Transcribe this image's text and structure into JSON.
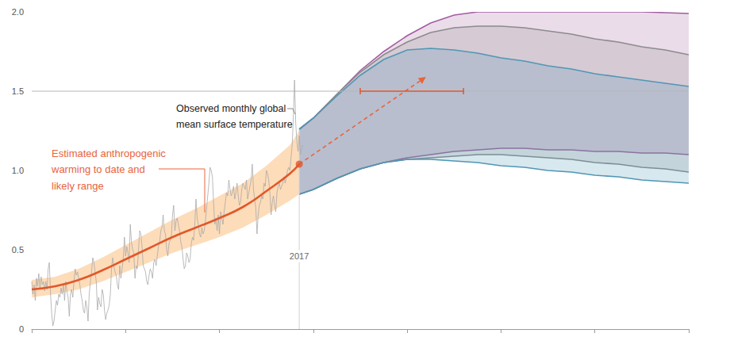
{
  "chart_data": {
    "type": "line",
    "xlim": [
      1960,
      2100
    ],
    "xticks": [
      1960,
      1980,
      2000,
      2020,
      2040,
      2060,
      2080,
      2100
    ],
    "ylim": [
      0,
      2
    ],
    "yticks": [
      0,
      0.5,
      {
        "value": 1,
        "label": "1.0"
      },
      1.5,
      {
        "value": 2,
        "label": "2.0"
      }
    ],
    "tick_labels": "y",
    "grid": false,
    "hline": {
      "y": 1.5,
      "color": "#b5b5b5"
    },
    "vline": 2017,
    "annotations": [
      {
        "text": "Observed monthly global\nmean surface temperature",
        "color": "#222222"
      },
      {
        "text": "Estimated anthropogenic\nwarming to date and\nlikely range",
        "color": "#e8643c"
      }
    ],
    "series": [
      {
        "type": "band",
        "color": "#fbc48a",
        "line_style": "none",
        "x": [
          1960,
          1965,
          1970,
          1975,
          1980,
          1985,
          1990,
          1995,
          2000,
          2005,
          2010,
          2015,
          2017
        ],
        "lower": [
          0.2,
          0.22,
          0.25,
          0.3,
          0.36,
          0.42,
          0.48,
          0.53,
          0.58,
          0.64,
          0.72,
          0.81,
          0.85
        ],
        "upper": [
          0.31,
          0.33,
          0.38,
          0.45,
          0.53,
          0.61,
          0.69,
          0.76,
          0.84,
          0.92,
          1.03,
          1.16,
          1.25
        ]
      },
      {
        "type": "line",
        "color": "#a9a9a9",
        "line_style": "thin",
        "x": [
          1960,
          1960.25,
          1960.5,
          1960.75,
          1961,
          1961.25,
          1961.5,
          1961.75,
          1962,
          1962.25,
          1962.5,
          1962.75,
          1963,
          1963.25,
          1963.5,
          1963.75,
          1964,
          1964.25,
          1964.5,
          1964.75,
          1965,
          1965.25,
          1965.5,
          1965.75,
          1966,
          1966.25,
          1966.5,
          1966.75,
          1967,
          1967.25,
          1967.5,
          1967.75,
          1968,
          1968.25,
          1968.5,
          1968.75,
          1969,
          1969.25,
          1969.5,
          1969.75,
          1970,
          1970.25,
          1970.5,
          1970.75,
          1971,
          1971.25,
          1971.5,
          1971.75,
          1972,
          1972.25,
          1972.5,
          1972.75,
          1973,
          1973.25,
          1973.5,
          1973.75,
          1974,
          1974.25,
          1974.5,
          1974.75,
          1975,
          1975.25,
          1975.5,
          1975.75,
          1976,
          1976.25,
          1976.5,
          1976.75,
          1977,
          1977.25,
          1977.5,
          1977.75,
          1978,
          1978.25,
          1978.5,
          1978.75,
          1979,
          1979.25,
          1979.5,
          1979.75,
          1980,
          1980.25,
          1980.5,
          1980.75,
          1981,
          1981.25,
          1981.5,
          1981.75,
          1982,
          1982.25,
          1982.5,
          1982.75,
          1983,
          1983.25,
          1983.5,
          1983.75,
          1984,
          1984.25,
          1984.5,
          1984.75,
          1985,
          1985.25,
          1985.5,
          1985.75,
          1986,
          1986.25,
          1986.5,
          1986.75,
          1987,
          1987.25,
          1987.5,
          1987.75,
          1988,
          1988.25,
          1988.5,
          1988.75,
          1989,
          1989.25,
          1989.5,
          1989.75,
          1990,
          1990.25,
          1990.5,
          1990.75,
          1991,
          1991.25,
          1991.5,
          1991.75,
          1992,
          1992.25,
          1992.5,
          1992.75,
          1993,
          1993.25,
          1993.5,
          1993.75,
          1994,
          1994.25,
          1994.5,
          1994.75,
          1995,
          1995.25,
          1995.5,
          1995.75,
          1996,
          1996.25,
          1996.5,
          1996.75,
          1997,
          1997.25,
          1997.5,
          1997.75,
          1998,
          1998.25,
          1998.5,
          1998.75,
          1999,
          1999.25,
          1999.5,
          1999.75,
          2000,
          2000.25,
          2000.5,
          2000.75,
          2001,
          2001.25,
          2001.5,
          2001.75,
          2002,
          2002.25,
          2002.5,
          2002.75,
          2003,
          2003.25,
          2003.5,
          2003.75,
          2004,
          2004.25,
          2004.5,
          2004.75,
          2005,
          2005.25,
          2005.5,
          2005.75,
          2006,
          2006.25,
          2006.5,
          2006.75,
          2007,
          2007.25,
          2007.5,
          2007.75,
          2008,
          2008.25,
          2008.5,
          2008.75,
          2009,
          2009.25,
          2009.5,
          2009.75,
          2010,
          2010.25,
          2010.5,
          2010.75,
          2011,
          2011.25,
          2011.5,
          2011.75,
          2012,
          2012.25,
          2012.5,
          2012.75,
          2013,
          2013.25,
          2013.5,
          2013.75,
          2014,
          2014.25,
          2014.5,
          2014.75,
          2015,
          2015.25,
          2015.5,
          2015.75,
          2016,
          2016.25,
          2016.5,
          2016.75,
          2017,
          2017.25,
          2017.5,
          2017.75
        ],
        "values": [
          0.3,
          0.22,
          0.28,
          0.18,
          0.32,
          0.27,
          0.35,
          0.26,
          0.33,
          0.28,
          0.3,
          0.24,
          0.3,
          0.25,
          0.38,
          0.42,
          0.22,
          0.1,
          0.02,
          0.05,
          0.12,
          0.18,
          0.15,
          0.22,
          0.2,
          0.26,
          0.22,
          0.28,
          0.18,
          0.3,
          0.24,
          0.2,
          0.08,
          0.22,
          0.25,
          0.2,
          0.3,
          0.38,
          0.34,
          0.36,
          0.32,
          0.28,
          0.22,
          0.18,
          0.12,
          0.1,
          0.18,
          0.14,
          0.05,
          0.22,
          0.3,
          0.36,
          0.45,
          0.42,
          0.36,
          0.3,
          0.12,
          0.2,
          0.16,
          0.14,
          0.25,
          0.22,
          0.12,
          0.06,
          0.1,
          0.12,
          0.15,
          0.22,
          0.38,
          0.45,
          0.4,
          0.36,
          0.34,
          0.28,
          0.25,
          0.4,
          0.32,
          0.38,
          0.44,
          0.58,
          0.46,
          0.52,
          0.48,
          0.42,
          0.66,
          0.55,
          0.5,
          0.48,
          0.32,
          0.4,
          0.38,
          0.5,
          0.62,
          0.6,
          0.52,
          0.4,
          0.38,
          0.36,
          0.3,
          0.28,
          0.34,
          0.38,
          0.36,
          0.32,
          0.42,
          0.44,
          0.4,
          0.46,
          0.52,
          0.55,
          0.62,
          0.64,
          0.72,
          0.62,
          0.6,
          0.5,
          0.46,
          0.54,
          0.56,
          0.58,
          0.72,
          0.78,
          0.62,
          0.68,
          0.7,
          0.66,
          0.62,
          0.55,
          0.52,
          0.44,
          0.38,
          0.4,
          0.48,
          0.46,
          0.42,
          0.44,
          0.54,
          0.58,
          0.56,
          0.66,
          0.82,
          0.7,
          0.66,
          0.6,
          0.58,
          0.64,
          0.6,
          0.62,
          0.68,
          0.76,
          0.84,
          0.92,
          1.02,
          1.0,
          0.96,
          0.8,
          0.66,
          0.7,
          0.62,
          0.72,
          0.6,
          0.74,
          0.7,
          0.66,
          0.74,
          0.8,
          0.86,
          0.84,
          0.94,
          0.88,
          0.84,
          0.86,
          0.9,
          0.82,
          0.86,
          0.92,
          0.84,
          0.78,
          0.8,
          0.88,
          0.92,
          0.9,
          0.88,
          0.94,
          0.82,
          0.86,
          0.9,
          0.94,
          1.04,
          0.88,
          0.82,
          0.76,
          0.6,
          0.72,
          0.78,
          0.8,
          0.84,
          0.82,
          0.92,
          0.9,
          1.0,
          0.98,
          0.94,
          0.86,
          0.72,
          0.8,
          0.84,
          0.78,
          0.74,
          0.86,
          0.9,
          0.92,
          0.88,
          0.9,
          0.92,
          0.96,
          0.92,
          0.96,
          1.0,
          1.02,
          1.0,
          1.08,
          1.16,
          1.34,
          1.57,
          1.3,
          1.18,
          1.12,
          1.22,
          1.1,
          1.14,
          1.16
        ]
      },
      {
        "type": "line",
        "color": "#e1582a",
        "line_style": "thick",
        "x": [
          1960,
          1965,
          1970,
          1975,
          1980,
          1985,
          1990,
          1995,
          2000,
          2005,
          2010,
          2015,
          2017
        ],
        "values": [
          0.25,
          0.27,
          0.31,
          0.37,
          0.44,
          0.51,
          0.58,
          0.64,
          0.7,
          0.77,
          0.87,
          0.98,
          1.04
        ]
      },
      {
        "type": "arrow",
        "color": "#e8643c",
        "line_style": "dashed",
        "x": [
          2017,
          2044
        ],
        "values": [
          1.04,
          1.59
        ]
      },
      {
        "type": "scatter",
        "color": "#e1582a",
        "marker": "circle",
        "x": [
          2017
        ],
        "values": [
          1.04
        ]
      },
      {
        "type": "range",
        "color": "#e1582a",
        "x": [
          2030,
          2052
        ],
        "values": [
          1.5,
          1.5
        ]
      },
      {
        "type": "band",
        "color": "#a25ea0",
        "line_style": "solid",
        "x": [
          2017,
          2020,
          2025,
          2030,
          2035,
          2040,
          2045,
          2050,
          2055,
          2060,
          2065,
          2070,
          2075,
          2080,
          2085,
          2090,
          2095,
          2100
        ],
        "lower": [
          0.85,
          0.88,
          0.95,
          1.01,
          1.05,
          1.08,
          1.1,
          1.12,
          1.13,
          1.14,
          1.14,
          1.13,
          1.13,
          1.12,
          1.12,
          1.11,
          1.11,
          1.1
        ],
        "upper": [
          1.26,
          1.33,
          1.48,
          1.63,
          1.75,
          1.85,
          1.93,
          1.98,
          2.0,
          2.0,
          2.0,
          2.0,
          2.0,
          2.0,
          2.0,
          2.0,
          1.995,
          1.99
        ]
      },
      {
        "type": "band",
        "color": "#8c8c8c",
        "line_style": "solid",
        "x": [
          2017,
          2020,
          2025,
          2030,
          2035,
          2040,
          2045,
          2050,
          2055,
          2060,
          2065,
          2070,
          2075,
          2080,
          2085,
          2090,
          2095,
          2100
        ],
        "lower": [
          0.85,
          0.88,
          0.95,
          1.01,
          1.05,
          1.07,
          1.08,
          1.09,
          1.1,
          1.1,
          1.09,
          1.08,
          1.07,
          1.05,
          1.04,
          1.02,
          1.01,
          0.99
        ],
        "upper": [
          1.26,
          1.33,
          1.48,
          1.62,
          1.73,
          1.81,
          1.87,
          1.9,
          1.91,
          1.91,
          1.9,
          1.88,
          1.86,
          1.83,
          1.81,
          1.78,
          1.76,
          1.73
        ]
      },
      {
        "type": "band",
        "color": "#4f97b4",
        "line_style": "solid",
        "x": [
          2017,
          2020,
          2025,
          2030,
          2035,
          2040,
          2045,
          2050,
          2055,
          2060,
          2065,
          2070,
          2075,
          2080,
          2085,
          2090,
          2095,
          2100
        ],
        "lower": [
          0.85,
          0.88,
          0.95,
          1.01,
          1.05,
          1.07,
          1.07,
          1.06,
          1.05,
          1.03,
          1.02,
          1.0,
          0.99,
          0.97,
          0.96,
          0.94,
          0.93,
          0.92
        ],
        "upper": [
          1.26,
          1.33,
          1.47,
          1.6,
          1.7,
          1.76,
          1.77,
          1.76,
          1.74,
          1.71,
          1.69,
          1.66,
          1.64,
          1.61,
          1.59,
          1.57,
          1.55,
          1.53
        ]
      }
    ]
  }
}
